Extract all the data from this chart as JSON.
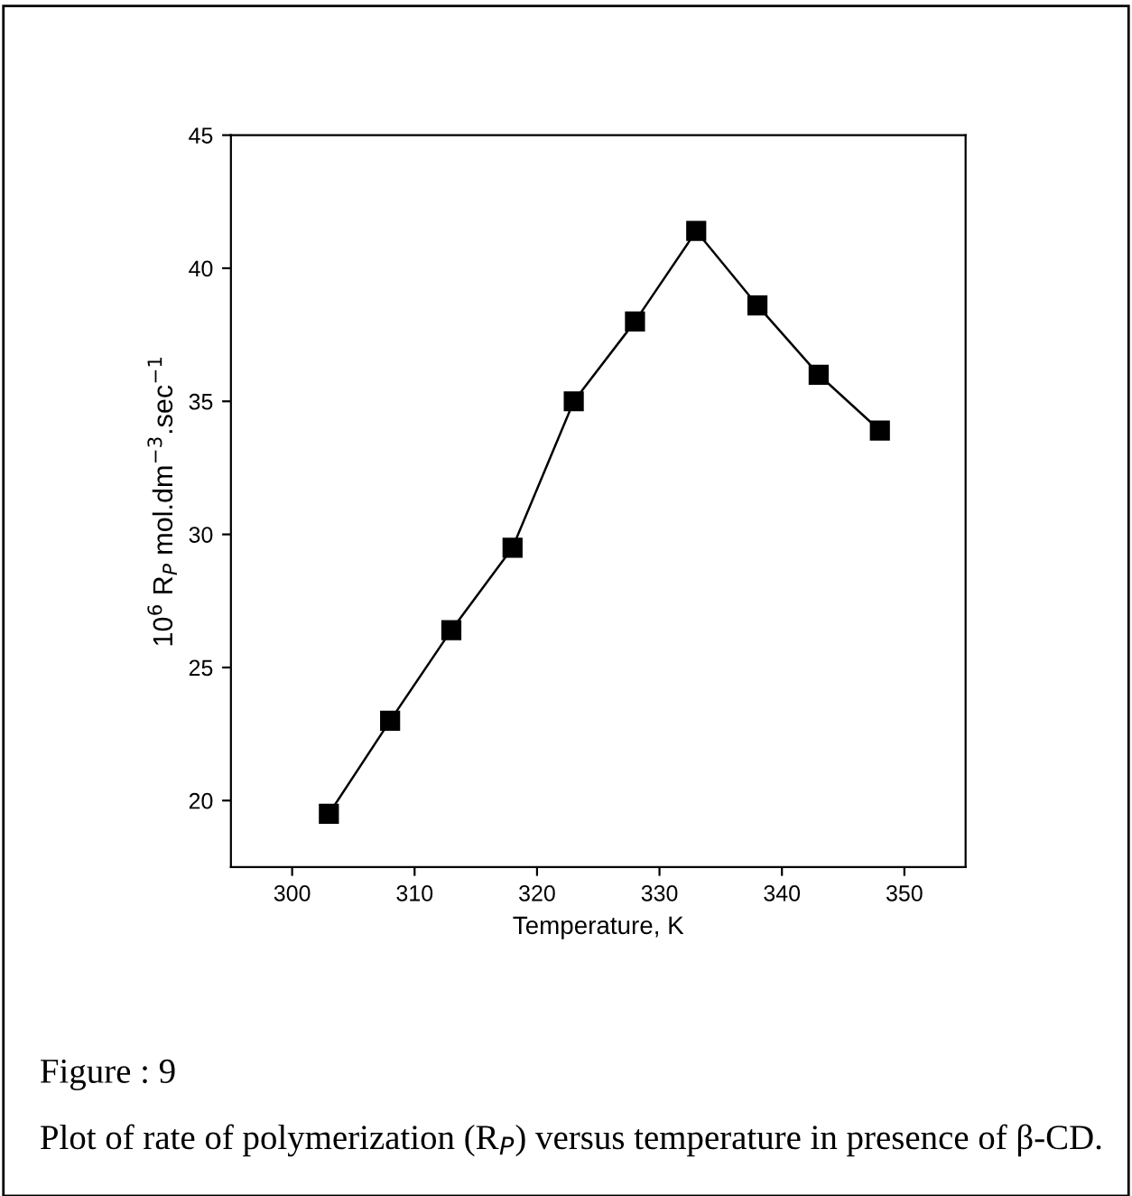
{
  "chart_data": {
    "type": "line",
    "xlabel": "Temperature, K",
    "ylabel": "10$^{6}$ R$_{P}$ mol.dm$^{−3}$.sec$^{−1}$",
    "x": [
      303,
      308,
      313,
      318,
      323,
      328,
      333,
      338,
      343,
      348
    ],
    "series": [
      {
        "color": "#000000",
        "values": [
          19.5,
          23.0,
          26.4,
          29.5,
          35.0,
          38.0,
          41.4,
          38.6,
          36.0,
          33.9
        ]
      }
    ],
    "xlim": [
      295,
      355
    ],
    "xticks": [
      300,
      310,
      320,
      330,
      340,
      350
    ],
    "ylim": [
      17.5,
      45
    ],
    "yticks": [
      20,
      25,
      30,
      35,
      40,
      45
    ],
    "marker": "square",
    "line_style": "solid",
    "grid": false,
    "annotations": [
      "Figure : 9",
      "Plot of rate of polymerization (R$_{P}$) versus temperature in presence of β-CD."
    ]
  }
}
